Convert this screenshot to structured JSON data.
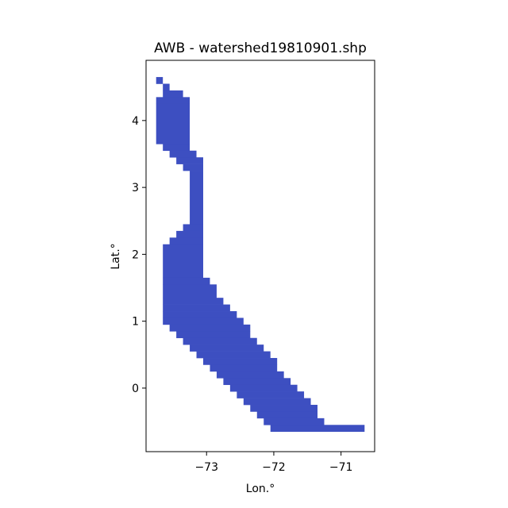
{
  "chart_data": {
    "type": "heatmap",
    "title": "AWB - watershed19810901.shp",
    "xlabel": "Lon.°",
    "ylabel": "Lat.°",
    "xlim": [
      -73.9,
      -70.5
    ],
    "ylim": [
      -0.95,
      4.9
    ],
    "xticks": [
      -73,
      -72,
      -71
    ],
    "xtick_labels": [
      "−73",
      "−72",
      "−71"
    ],
    "yticks": [
      0,
      1,
      2,
      3,
      4
    ],
    "ytick_labels": [
      "0",
      "1",
      "2",
      "3",
      "4"
    ],
    "fill_color": "#3d4fc1",
    "cell_size_deg": 0.1,
    "rows": [
      {
        "lat_top": 4.65,
        "lat_bottom": 4.55,
        "lon_min": -73.75,
        "lon_max": -73.65
      },
      {
        "lat_top": 4.55,
        "lat_bottom": 4.45,
        "lon_min": -73.65,
        "lon_max": -73.55
      },
      {
        "lat_top": 4.45,
        "lat_bottom": 4.35,
        "lon_min": -73.65,
        "lon_max": -73.35
      },
      {
        "lat_top": 4.35,
        "lat_bottom": 4.25,
        "lon_min": -73.75,
        "lon_max": -73.25
      },
      {
        "lat_top": 4.25,
        "lat_bottom": 3.65,
        "lon_min": -73.75,
        "lon_max": -73.25
      },
      {
        "lat_top": 3.65,
        "lat_bottom": 3.55,
        "lon_min": -73.65,
        "lon_max": -73.25
      },
      {
        "lat_top": 3.55,
        "lat_bottom": 3.45,
        "lon_min": -73.55,
        "lon_max": -73.15
      },
      {
        "lat_top": 3.45,
        "lat_bottom": 3.35,
        "lon_min": -73.45,
        "lon_max": -73.05
      },
      {
        "lat_top": 3.35,
        "lat_bottom": 3.25,
        "lon_min": -73.35,
        "lon_max": -73.05
      },
      {
        "lat_top": 3.25,
        "lat_bottom": 2.45,
        "lon_min": -73.25,
        "lon_max": -73.05
      },
      {
        "lat_top": 2.45,
        "lat_bottom": 2.35,
        "lon_min": -73.35,
        "lon_max": -73.05
      },
      {
        "lat_top": 2.35,
        "lat_bottom": 2.25,
        "lon_min": -73.45,
        "lon_max": -73.05
      },
      {
        "lat_top": 2.25,
        "lat_bottom": 2.15,
        "lon_min": -73.55,
        "lon_max": -73.05
      },
      {
        "lat_top": 2.15,
        "lat_bottom": 1.65,
        "lon_min": -73.65,
        "lon_max": -73.05
      },
      {
        "lat_top": 1.65,
        "lat_bottom": 1.55,
        "lon_min": -73.65,
        "lon_max": -72.95
      },
      {
        "lat_top": 1.55,
        "lat_bottom": 1.35,
        "lon_min": -73.65,
        "lon_max": -72.85
      },
      {
        "lat_top": 1.35,
        "lat_bottom": 1.25,
        "lon_min": -73.65,
        "lon_max": -72.75
      },
      {
        "lat_top": 1.25,
        "lat_bottom": 1.15,
        "lon_min": -73.65,
        "lon_max": -72.65
      },
      {
        "lat_top": 1.15,
        "lat_bottom": 1.05,
        "lon_min": -73.65,
        "lon_max": -72.55
      },
      {
        "lat_top": 1.05,
        "lat_bottom": 0.95,
        "lon_min": -73.65,
        "lon_max": -72.45
      },
      {
        "lat_top": 0.95,
        "lat_bottom": 0.85,
        "lon_min": -73.55,
        "lon_max": -72.35
      },
      {
        "lat_top": 0.85,
        "lat_bottom": 0.75,
        "lon_min": -73.45,
        "lon_max": -72.35
      },
      {
        "lat_top": 0.75,
        "lat_bottom": 0.65,
        "lon_min": -73.35,
        "lon_max": -72.25
      },
      {
        "lat_top": 0.65,
        "lat_bottom": 0.55,
        "lon_min": -73.25,
        "lon_max": -72.15
      },
      {
        "lat_top": 0.55,
        "lat_bottom": 0.45,
        "lon_min": -73.15,
        "lon_max": -72.05
      },
      {
        "lat_top": 0.45,
        "lat_bottom": 0.35,
        "lon_min": -73.05,
        "lon_max": -71.95
      },
      {
        "lat_top": 0.35,
        "lat_bottom": 0.25,
        "lon_min": -72.95,
        "lon_max": -71.95
      },
      {
        "lat_top": 0.25,
        "lat_bottom": 0.15,
        "lon_min": -72.85,
        "lon_max": -71.85
      },
      {
        "lat_top": 0.15,
        "lat_bottom": 0.05,
        "lon_min": -72.75,
        "lon_max": -71.75
      },
      {
        "lat_top": 0.05,
        "lat_bottom": -0.05,
        "lon_min": -72.65,
        "lon_max": -71.65
      },
      {
        "lat_top": -0.05,
        "lat_bottom": -0.15,
        "lon_min": -72.55,
        "lon_max": -71.55
      },
      {
        "lat_top": -0.15,
        "lat_bottom": -0.25,
        "lon_min": -72.45,
        "lon_max": -71.45
      },
      {
        "lat_top": -0.25,
        "lat_bottom": -0.35,
        "lon_min": -72.35,
        "lon_max": -71.35
      },
      {
        "lat_top": -0.35,
        "lat_bottom": -0.45,
        "lon_min": -72.25,
        "lon_max": -71.35
      },
      {
        "lat_top": -0.45,
        "lat_bottom": -0.55,
        "lon_min": -72.15,
        "lon_max": -71.25
      },
      {
        "lat_top": -0.55,
        "lat_bottom": -0.65,
        "lon_min": -72.05,
        "lon_max": -70.65
      }
    ]
  }
}
